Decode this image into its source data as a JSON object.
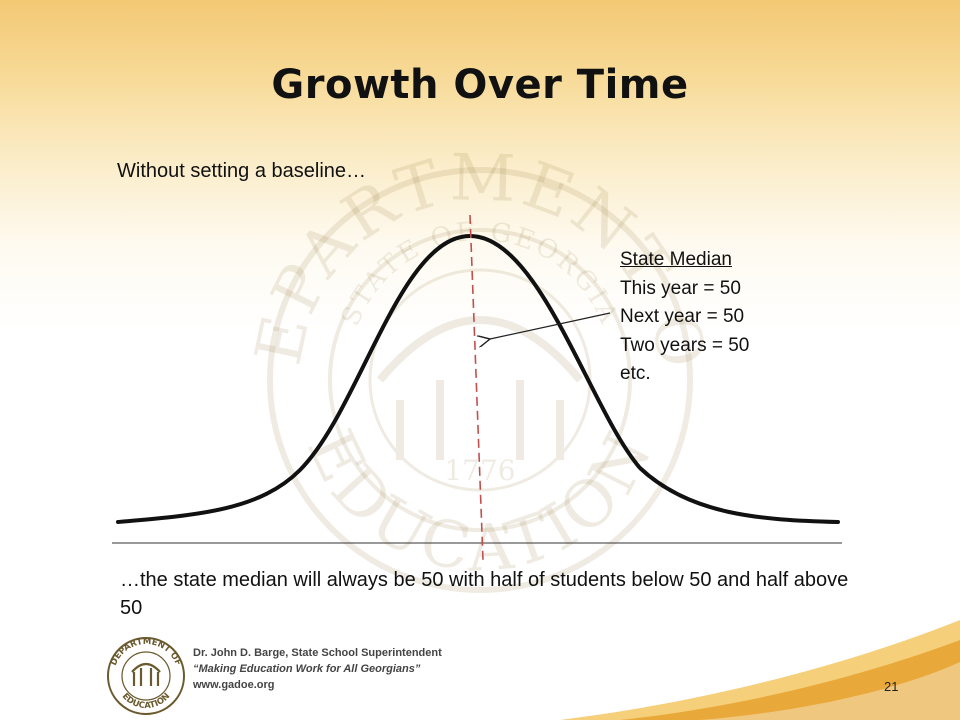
{
  "slide": {
    "title": "Growth Over Time",
    "intro": "Without setting a baseline…",
    "median_box": {
      "title": "State Median",
      "lines": [
        "This year = 50",
        "Next year = 50",
        "Two years = 50",
        "etc."
      ]
    },
    "conclusion": "…the state median will always be 50 with half of students below 50 and half above 50",
    "page_number": "21"
  },
  "footer": {
    "line1": "Dr. John D. Barge, State School Superintendent",
    "line2": "“Making Education Work for All Georgians”",
    "line3": "www.gadoe.org"
  },
  "watermark": {
    "top_text": "DEPARTMENT OF",
    "bottom_text": "EDUCATION",
    "inner_text": "STATE OF GEORGIA",
    "year": "1776"
  },
  "logo": {
    "top_text": "DEPARTMENT OF",
    "bottom_text": "EDUCATION"
  },
  "colors": {
    "curve": "#111111",
    "median_line": "#c0504d",
    "footer_swoosh": "#e8a93a"
  }
}
